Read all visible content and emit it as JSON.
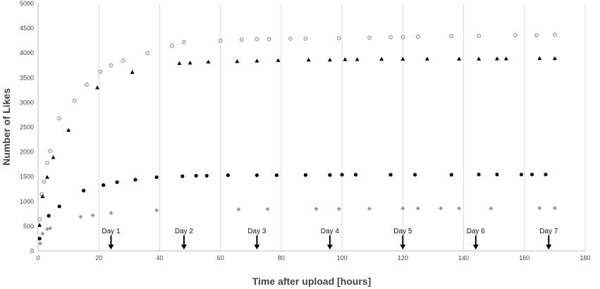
{
  "chart_data": {
    "type": "scatter",
    "title": "",
    "xlabel": "Time after upload  [hours]",
    "ylabel": "Number of Likes",
    "xlim": [
      0,
      180
    ],
    "ylim": [
      0,
      5000
    ],
    "x_ticks": [
      0,
      20,
      40,
      60,
      80,
      100,
      120,
      140,
      160,
      180
    ],
    "y_ticks": [
      0,
      500,
      1000,
      1500,
      2000,
      2500,
      3000,
      3500,
      4000,
      4500,
      5000
    ],
    "grid": "vertical",
    "legend": "none",
    "colors": {
      "open_circle": "#999999",
      "triangle": "#000000",
      "circle": "#000000",
      "diamond": "#999999",
      "gridline": "#d9d9d9",
      "axis": "#bfbfbf",
      "text": "#444444"
    },
    "series": [
      {
        "marker": "open-circle",
        "x": [
          0.5,
          1.2,
          2,
          3,
          4,
          7,
          12,
          16,
          20.5,
          24,
          28,
          36,
          44,
          48,
          60,
          67,
          72,
          76,
          83,
          88,
          99,
          109,
          116,
          120,
          125,
          136,
          145,
          157,
          164,
          170
        ],
        "y": [
          640,
          1150,
          1400,
          1780,
          2020,
          2680,
          3040,
          3360,
          3620,
          3750,
          3850,
          4000,
          4150,
          4220,
          4250,
          4270,
          4280,
          4280,
          4290,
          4290,
          4300,
          4310,
          4320,
          4320,
          4330,
          4340,
          4350,
          4360,
          4360,
          4370
        ]
      },
      {
        "marker": "triangle",
        "x": [
          0.5,
          1.5,
          3,
          5,
          10,
          19.5,
          31,
          46.5,
          50,
          56,
          65.5,
          72,
          79,
          89,
          96,
          101,
          105,
          113,
          120,
          128,
          138.5,
          145,
          151,
          154,
          165,
          170
        ],
        "y": [
          520,
          1100,
          1490,
          1890,
          2440,
          3300,
          3610,
          3790,
          3800,
          3820,
          3830,
          3840,
          3850,
          3860,
          3860,
          3870,
          3870,
          3875,
          3875,
          3880,
          3880,
          3880,
          3885,
          3885,
          3890,
          3890
        ]
      },
      {
        "marker": "circle",
        "x": [
          0.5,
          3.5,
          7,
          15,
          21.5,
          26,
          32,
          39,
          47.5,
          52,
          55.5,
          62.5,
          72,
          78.5,
          88,
          96,
          100,
          104.5,
          116,
          124,
          136,
          145,
          151,
          159,
          162.5,
          167
        ],
        "y": [
          250,
          710,
          900,
          1220,
          1330,
          1390,
          1440,
          1490,
          1510,
          1520,
          1520,
          1530,
          1530,
          1530,
          1535,
          1535,
          1540,
          1540,
          1540,
          1540,
          1540,
          1545,
          1545,
          1545,
          1545,
          1545
        ]
      },
      {
        "marker": "diamond",
        "x": [
          0.7,
          1.5,
          3,
          4,
          14,
          18,
          24,
          39,
          66,
          75.5,
          91.5,
          99,
          109,
          120,
          125,
          132.5,
          138.5,
          149,
          165,
          170
        ],
        "y": [
          150,
          350,
          440,
          460,
          690,
          720,
          770,
          820,
          840,
          845,
          850,
          850,
          855,
          860,
          860,
          860,
          860,
          860,
          865,
          865
        ]
      }
    ],
    "annotations": [
      {
        "label": "Day 1",
        "x": 24
      },
      {
        "label": "Day 2",
        "x": 48
      },
      {
        "label": "Day 3",
        "x": 72
      },
      {
        "label": "Day 4",
        "x": 96
      },
      {
        "label": "Day 5",
        "x": 120
      },
      {
        "label": "Day 6",
        "x": 144
      },
      {
        "label": "Day 7",
        "x": 168
      }
    ]
  }
}
